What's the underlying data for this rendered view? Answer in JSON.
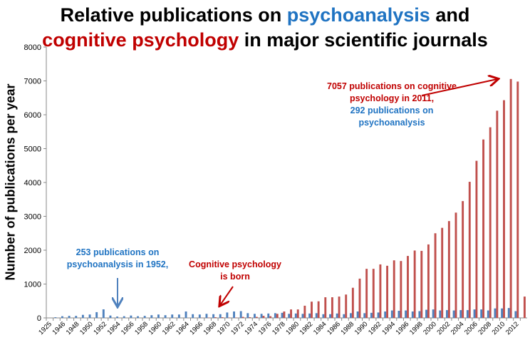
{
  "chart_data": {
    "type": "bar",
    "title": {
      "line1_prefix": "Relative publications on ",
      "line1_highlight": "psychoanalysis",
      "line1_suffix": " and",
      "line2_highlight": "cognitive psychology",
      "line2_suffix": " in major scientific journals"
    },
    "xlabel": "",
    "ylabel": "Number of publications per year",
    "ylim": [
      0,
      8000
    ],
    "yticks": [
      0,
      1000,
      2000,
      3000,
      4000,
      5000,
      6000,
      7000,
      8000
    ],
    "grid": false,
    "categories": [
      "1925",
      "1945",
      "1946",
      "1947",
      "1948",
      "1949",
      "1950",
      "1951",
      "1952",
      "1953",
      "1954",
      "1955",
      "1956",
      "1957",
      "1958",
      "1959",
      "1960",
      "1961",
      "1962",
      "1963",
      "1964",
      "1965",
      "1966",
      "1967",
      "1968",
      "1969",
      "1970",
      "1971",
      "1972",
      "1973",
      "1974",
      "1975",
      "1976",
      "1977",
      "1978",
      "1979",
      "1980",
      "1981",
      "1982",
      "1983",
      "1984",
      "1985",
      "1986",
      "1987",
      "1988",
      "1989",
      "1990",
      "1991",
      "1992",
      "1993",
      "1994",
      "1995",
      "1996",
      "1997",
      "1998",
      "1999",
      "2000",
      "2001",
      "2002",
      "2003",
      "2004",
      "2005",
      "2006",
      "2007",
      "2008",
      "2009",
      "2010",
      "2011",
      "2012",
      "2013"
    ],
    "series": [
      {
        "name": "psychoanalysis",
        "color": "#4f81bd",
        "values": [
          0,
          20,
          50,
          60,
          60,
          90,
          100,
          170,
          253,
          70,
          40,
          50,
          70,
          50,
          60,
          80,
          100,
          80,
          100,
          100,
          190,
          110,
          100,
          120,
          110,
          110,
          160,
          190,
          200,
          140,
          120,
          120,
          130,
          140,
          150,
          120,
          130,
          120,
          130,
          140,
          110,
          110,
          130,
          110,
          140,
          190,
          140,
          150,
          160,
          190,
          220,
          210,
          220,
          190,
          200,
          240,
          250,
          220,
          230,
          220,
          230,
          230,
          250,
          250,
          220,
          280,
          280,
          292,
          200,
          0
        ]
      },
      {
        "name": "cognitive psychology",
        "color": "#c0504d",
        "values": [
          0,
          0,
          0,
          0,
          0,
          0,
          0,
          0,
          0,
          0,
          0,
          0,
          0,
          0,
          0,
          0,
          0,
          0,
          0,
          0,
          0,
          0,
          5,
          10,
          20,
          20,
          10,
          10,
          30,
          20,
          30,
          60,
          50,
          120,
          190,
          250,
          250,
          360,
          480,
          490,
          610,
          610,
          630,
          690,
          890,
          1160,
          1450,
          1450,
          1580,
          1540,
          1700,
          1680,
          1830,
          1990,
          1980,
          2170,
          2500,
          2660,
          2860,
          3110,
          3450,
          4020,
          4640,
          5270,
          5630,
          6120,
          6430,
          7057,
          6980,
          630
        ]
      }
    ],
    "annotations": [
      {
        "lines": [
          "253 publications on",
          "psychoanalysis in 1952,"
        ],
        "color": "#1f73c2",
        "points_to": "1952"
      },
      {
        "lines": [
          "Cognitive psychology",
          "is born"
        ],
        "color": "#c00000",
        "points_to": "1967"
      },
      {
        "lines": [
          "7057 publications on cognitive",
          "psychology in 2011,"
        ],
        "color": "#c00000",
        "points_to": "2011"
      },
      {
        "lines": [
          "292 publications on",
          "psychoanalysis"
        ],
        "color": "#1f73c2"
      }
    ]
  }
}
